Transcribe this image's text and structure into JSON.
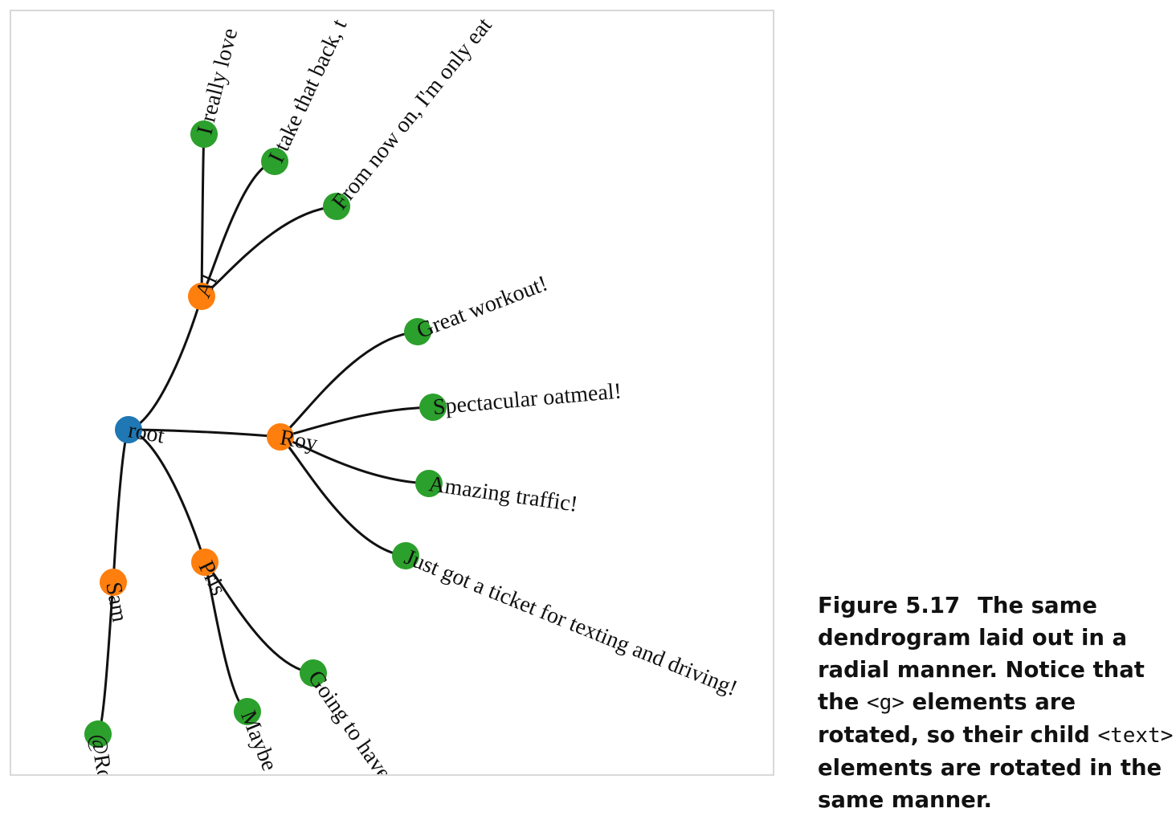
{
  "diagram": {
    "type": "radial-dendrogram",
    "colors": {
      "root": "#1f77b4",
      "group": "#ff7f0e",
      "leaf": "#2ca02c",
      "link": "#111111"
    },
    "nodes": [
      {
        "id": "root",
        "label": "root",
        "kind": "root"
      },
      {
        "id": "al",
        "label": "Al",
        "kind": "group"
      },
      {
        "id": "roy",
        "label": "Roy",
        "kind": "group"
      },
      {
        "id": "pris",
        "label": "Pris",
        "kind": "group"
      },
      {
        "id": "sam",
        "label": "Sam",
        "kind": "group"
      },
      {
        "id": "al_1",
        "label": "I really love",
        "kind": "leaf"
      },
      {
        "id": "al_2",
        "label": "I take that back, t",
        "kind": "leaf"
      },
      {
        "id": "al_3",
        "label": "From now on, I'm only eat",
        "kind": "leaf"
      },
      {
        "id": "roy_1",
        "label": "Great workout!",
        "kind": "leaf"
      },
      {
        "id": "roy_2",
        "label": "Spectacular oatmeal!",
        "kind": "leaf"
      },
      {
        "id": "roy_3",
        "label": "Amazing traffic!",
        "kind": "leaf"
      },
      {
        "id": "roy_4",
        "label": "Just got a ticket for texting and driving!",
        "kind": "leaf"
      },
      {
        "id": "pris_1",
        "label": "Going to have",
        "kind": "leaf"
      },
      {
        "id": "pris_2",
        "label": "Maybe",
        "kind": "leaf"
      },
      {
        "id": "sam_1",
        "label": "@Ro",
        "kind": "leaf"
      }
    ],
    "links": [
      [
        "root",
        "al"
      ],
      [
        "root",
        "roy"
      ],
      [
        "root",
        "pris"
      ],
      [
        "root",
        "sam"
      ],
      [
        "al",
        "al_1"
      ],
      [
        "al",
        "al_2"
      ],
      [
        "al",
        "al_3"
      ],
      [
        "roy",
        "roy_1"
      ],
      [
        "roy",
        "roy_2"
      ],
      [
        "roy",
        "roy_3"
      ],
      [
        "roy",
        "roy_4"
      ],
      [
        "pris",
        "pris_1"
      ],
      [
        "pris",
        "pris_2"
      ],
      [
        "sam",
        "sam_1"
      ]
    ]
  },
  "caption": {
    "figure_number": "Figure 5.17",
    "text_before_g": "The same dendrogram laid out in a radial manner. Notice that the ",
    "code_g": "<g>",
    "text_middle": " elements are rotated, so their child ",
    "code_text": "<text>",
    "text_after": " elements are rotated in the same manner."
  }
}
